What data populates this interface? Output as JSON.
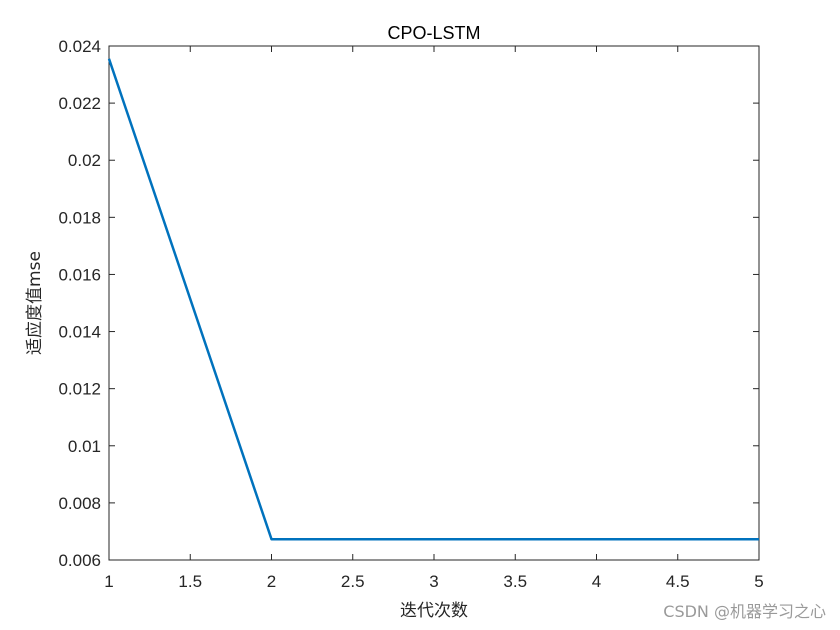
{
  "chart_data": {
    "type": "line",
    "title": "CPO-LSTM",
    "xlabel": "迭代次数",
    "ylabel": "适应度值mse",
    "xlim": [
      1,
      5
    ],
    "ylim": [
      0.006,
      0.024
    ],
    "xticks": [
      1,
      1.5,
      2,
      2.5,
      3,
      3.5,
      4,
      4.5,
      5
    ],
    "xtick_labels": [
      "1",
      "1.5",
      "2",
      "2.5",
      "3",
      "3.5",
      "4",
      "4.5",
      "5"
    ],
    "yticks": [
      0.006,
      0.008,
      0.01,
      0.012,
      0.014,
      0.016,
      0.018,
      0.02,
      0.022,
      0.024
    ],
    "ytick_labels": [
      "0.006",
      "0.008",
      "0.01",
      "0.012",
      "0.014",
      "0.016",
      "0.018",
      "0.02",
      "0.022",
      "0.024"
    ],
    "grid": false,
    "series": [
      {
        "x": [
          1,
          2,
          3,
          4,
          5
        ],
        "values": [
          0.02355,
          0.00673,
          0.00673,
          0.00673,
          0.00673
        ],
        "color": "#0072BD"
      }
    ]
  },
  "watermark": "CSDN @机器学习之心"
}
